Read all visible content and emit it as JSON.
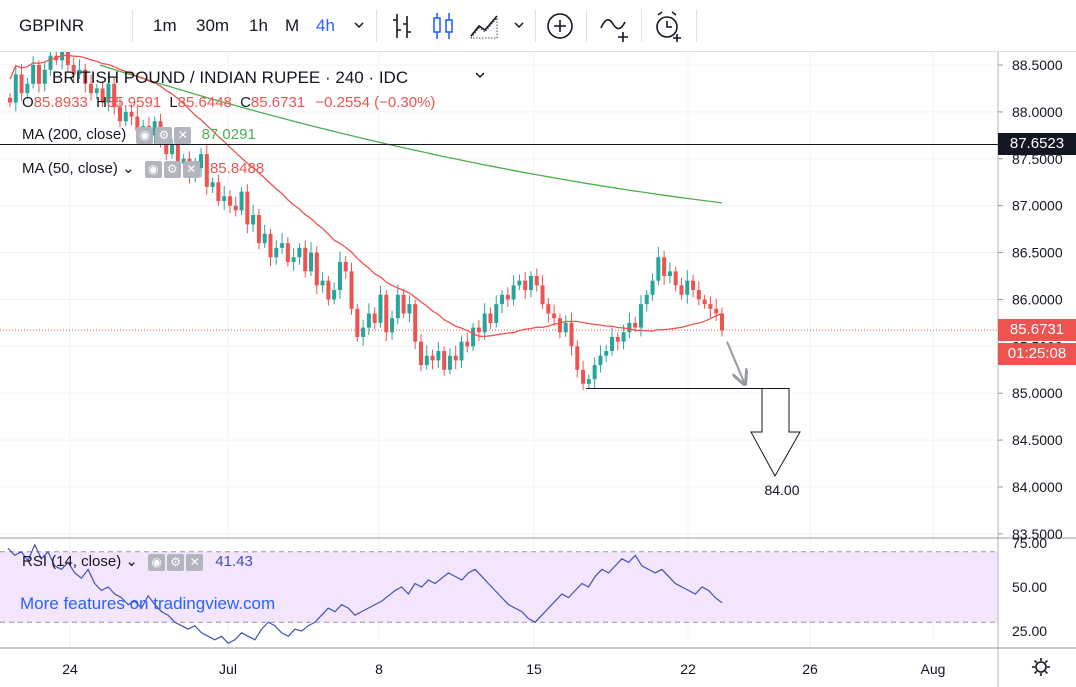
{
  "toolbar": {
    "symbol": "GBPINR",
    "intervals": [
      "1m",
      "30m",
      "1h",
      "M",
      "4h"
    ],
    "active_interval": "4h",
    "icons": [
      "chevron-down-icon",
      "bar-style-icon",
      "candle-style-icon",
      "area-style-icon",
      "chevron-down-icon",
      "add-indicator-icon",
      "compare-icon",
      "alert-icon"
    ]
  },
  "legend": {
    "title": "BRITISH POUND / INDIAN RUPEE · 240 · IDC",
    "open_label": "O",
    "open": "85.8933",
    "high_label": "H",
    "high": "85.9591",
    "low_label": "L",
    "low": "85.6448",
    "close_label": "C",
    "close": "85.6731",
    "change": "−0.2554 (−0.30%)",
    "ma200_label": "MA (200, close)",
    "ma200_value": "87.0291",
    "ma50_label": "MA (50, close)",
    "ma50_value": "85.8488"
  },
  "rsi_legend": {
    "label": "RSI (14, close)",
    "value": "41.43"
  },
  "watermark": "More features on tradingview.com",
  "price_tags": {
    "hline": "87.6523",
    "last": "85.6731",
    "countdown": "01:25:08"
  },
  "annotation": {
    "target": "84.00"
  },
  "colors": {
    "up": "#26a69a",
    "down": "#ef5350",
    "ma200": "#4caf50",
    "ma50": "#ef5350",
    "rsi": "#3f51b5",
    "rsi_band": "#f3e5fc",
    "accent": "#2962ff"
  },
  "chart_data": [
    {
      "type": "candlestick",
      "title": "BRITISH POUND / INDIAN RUPEE · 240 · IDC",
      "y_ticks": [
        "88.5000",
        "88.0000",
        "87.5000",
        "87.0000",
        "86.5000",
        "86.0000",
        "85.5000",
        "85.0000",
        "84.5000",
        "84.0000",
        "83.5000"
      ],
      "x_ticks": [
        "24",
        "Jul",
        "8",
        "15",
        "22",
        "26",
        "Aug"
      ],
      "ylim": [
        83.5,
        88.6
      ],
      "horizontal_line": 87.6523,
      "last_price": 85.6731,
      "support_level": 85.05,
      "target": 84.0,
      "candles_close": [
        88.1,
        88.4,
        88.2,
        88.3,
        88.5,
        88.3,
        88.45,
        88.6,
        88.55,
        88.7,
        88.5,
        88.4,
        88.45,
        88.3,
        88.2,
        88.25,
        88.1,
        88.3,
        88.05,
        87.9,
        88.0,
        87.95,
        87.8,
        87.85,
        87.75,
        87.9,
        87.7,
        87.55,
        87.65,
        87.45,
        87.5,
        87.3,
        87.4,
        87.55,
        87.2,
        87.25,
        87.05,
        87.1,
        87.0,
        86.95,
        87.15,
        86.8,
        86.9,
        86.6,
        86.7,
        86.45,
        86.55,
        86.6,
        86.4,
        86.45,
        86.55,
        86.3,
        86.5,
        86.15,
        86.2,
        86.0,
        86.1,
        86.4,
        86.3,
        85.9,
        85.6,
        85.7,
        85.85,
        85.75,
        86.05,
        85.65,
        85.8,
        86.05,
        85.85,
        85.95,
        85.55,
        85.3,
        85.4,
        85.35,
        85.45,
        85.25,
        85.4,
        85.35,
        85.55,
        85.5,
        85.7,
        85.65,
        85.85,
        85.75,
        85.95,
        86.05,
        86.0,
        86.15,
        86.2,
        86.1,
        86.25,
        86.15,
        85.95,
        85.85,
        85.8,
        85.65,
        85.75,
        85.5,
        85.25,
        85.1,
        85.15,
        85.3,
        85.4,
        85.45,
        85.6,
        85.55,
        85.65,
        85.75,
        85.7,
        85.95,
        86.05,
        86.2,
        86.45,
        86.25,
        86.3,
        86.15,
        86.05,
        86.2,
        86.1,
        86.0,
        85.95,
        85.9,
        85.85,
        85.67
      ],
      "ma200_start": 88.5,
      "ma200_end": 87.03,
      "ma50_end": 85.85,
      "rsi": {
        "label": "RSI (14, close)",
        "y_ticks": [
          "75.00",
          "50.00",
          "25.00"
        ],
        "band": [
          30,
          70
        ],
        "ylim": [
          15,
          80
        ],
        "last": 41.43,
        "values": [
          72,
          68,
          70,
          65,
          74,
          66,
          70,
          62,
          60,
          64,
          58,
          55,
          60,
          52,
          48,
          50,
          46,
          44,
          40,
          42,
          38,
          45,
          40,
          36,
          34,
          30,
          28,
          26,
          28,
          24,
          22,
          20,
          22,
          18,
          20,
          24,
          22,
          20,
          26,
          30,
          28,
          24,
          22,
          26,
          25,
          28,
          30,
          34,
          38,
          36,
          40,
          38,
          34,
          36,
          38,
          40,
          42,
          45,
          48,
          50,
          46,
          52,
          50,
          54,
          52,
          55,
          58,
          56,
          54,
          58,
          60,
          56,
          52,
          48,
          44,
          40,
          38,
          36,
          32,
          30,
          34,
          38,
          42,
          46,
          44,
          48,
          52,
          50,
          56,
          60,
          58,
          62,
          66,
          64,
          68,
          62,
          60,
          58,
          60,
          56,
          52,
          50,
          48,
          46,
          50,
          48,
          44,
          41
        ]
      }
    }
  ]
}
